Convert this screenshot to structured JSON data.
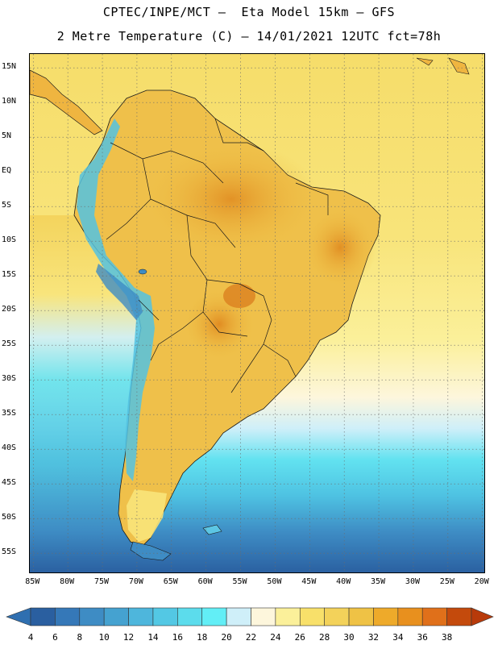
{
  "title": {
    "line1": "CPTEC/INPE/MCT –  Eta Model 15km – GFS",
    "line2": "2 Metre Temperature (C) – 14/01/2021 12UTC fct=78h"
  },
  "map": {
    "lat_labels": [
      "15N",
      "10N",
      "5N",
      "EQ",
      "5S",
      "10S",
      "15S",
      "20S",
      "25S",
      "30S",
      "35S",
      "40S",
      "45S",
      "50S",
      "55S"
    ],
    "lat_values": [
      15,
      10,
      5,
      0,
      -5,
      -10,
      -15,
      -20,
      -25,
      -30,
      -35,
      -40,
      -45,
      -50,
      -55
    ],
    "lon_labels": [
      "85W",
      "80W",
      "75W",
      "70W",
      "65W",
      "60W",
      "55W",
      "50W",
      "45W",
      "40W",
      "35W",
      "30W",
      "25W",
      "20W"
    ],
    "lon_values": [
      -85,
      -80,
      -75,
      -70,
      -65,
      -60,
      -55,
      -50,
      -45,
      -40,
      -35,
      -30,
      -25,
      -20
    ],
    "extent": {
      "lon_min": -85.5,
      "lon_max": -19.5,
      "lat_min": -58,
      "lat_max": 17
    },
    "region": "South America"
  },
  "colorbar": {
    "unit": "C",
    "labels": [
      "4",
      "6",
      "8",
      "10",
      "12",
      "14",
      "16",
      "18",
      "20",
      "22",
      "24",
      "26",
      "28",
      "30",
      "32",
      "34",
      "36",
      "38"
    ],
    "colors": [
      "#2a5fa0",
      "#3578b8",
      "#3e8cc4",
      "#45a2d0",
      "#4eb6dc",
      "#53c8e4",
      "#5cdcec",
      "#62eef6",
      "#cfeff9",
      "#fdf6dc",
      "#fbf09a",
      "#f8e06a",
      "#f3d25a",
      "#efc245",
      "#eeaa2a",
      "#e8901e",
      "#e0701a",
      "#c44a0c"
    ],
    "under_color": "#2f6fb0",
    "over_color": "#b83a0a"
  }
}
